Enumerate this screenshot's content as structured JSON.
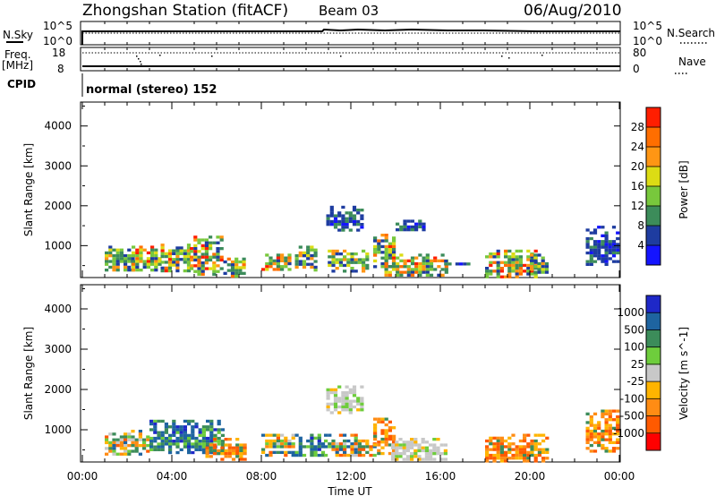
{
  "header": {
    "title": "Zhongshan Station (fitACF)",
    "beam": "Beam 03",
    "date": "06/Aug/2010"
  },
  "top_panels": {
    "nsky": {
      "label": "N.Sky",
      "tick_top": "10^5",
      "tick_bottom": "10^0",
      "right_label": "N.Search",
      "right_tick_top": "10^5",
      "right_tick_bottom": "10^0"
    },
    "freq": {
      "label_line1": "Freq.",
      "label_line2": "[MHz]",
      "tick_top": "18",
      "tick_bottom": "8",
      "right_label": "Nave",
      "right_tick_top": "80",
      "right_tick_bottom": "0"
    },
    "cpid": {
      "label": "CPID",
      "text": "normal (stereo) 152"
    }
  },
  "colors": {
    "power_scale": [
      "#1414ff",
      "#1e3ca0",
      "#3c8c5a",
      "#78c83c",
      "#dcdc14",
      "#ff9614",
      "#ff6e00",
      "#ff1e00"
    ],
    "velocity_scale": [
      "#ff0000",
      "#ff5a00",
      "#ff8c14",
      "#ffb400",
      "#c8c8c8",
      "#6ecd3c",
      "#3c8c5a",
      "#1e64a0",
      "#1e28c8"
    ]
  },
  "chart_data": [
    {
      "type": "heatmap",
      "name": "power",
      "ylabel": "Slant Range [km]",
      "xlim": [
        "00:00",
        "24:00"
      ],
      "ylim": [
        200,
        4600
      ],
      "yticks": [
        1000,
        2000,
        3000,
        4000
      ],
      "colorbar": {
        "label": "Power [dB]",
        "ticks": [
          "4",
          "8",
          "12",
          "16",
          "20",
          "24",
          "28"
        ],
        "range": [
          0,
          32
        ]
      },
      "blobs": [
        {
          "t": [
            1.0,
            2.2
          ],
          "r": [
            400,
            1000
          ],
          "level": "mixed"
        },
        {
          "t": [
            2.2,
            3.5
          ],
          "r": [
            400,
            1000
          ],
          "level": "high"
        },
        {
          "t": [
            3.5,
            4.8
          ],
          "r": [
            400,
            1050
          ],
          "level": "high"
        },
        {
          "t": [
            4.8,
            6.3
          ],
          "r": [
            300,
            1250
          ],
          "level": "high"
        },
        {
          "t": [
            6.3,
            7.3
          ],
          "r": [
            250,
            700
          ],
          "level": "high"
        },
        {
          "t": [
            8.0,
            9.3
          ],
          "r": [
            400,
            800
          ],
          "level": "high"
        },
        {
          "t": [
            9.5,
            10.5
          ],
          "r": [
            400,
            1000
          ],
          "level": "mixed"
        },
        {
          "t": [
            10.8,
            12.8
          ],
          "r": [
            350,
            900
          ],
          "level": "mixed"
        },
        {
          "t": [
            10.9,
            12.5
          ],
          "r": [
            1400,
            2000
          ],
          "level": "low"
        },
        {
          "t": [
            13.0,
            14.0
          ],
          "r": [
            500,
            1300
          ],
          "level": "high"
        },
        {
          "t": [
            13.5,
            16.2
          ],
          "r": [
            250,
            800
          ],
          "level": "high"
        },
        {
          "t": [
            14.0,
            15.3
          ],
          "r": [
            1400,
            1650
          ],
          "level": "low"
        },
        {
          "t": [
            16.0,
            17.2
          ],
          "r": [
            550,
            650
          ],
          "level": "low"
        },
        {
          "t": [
            18.0,
            20.2
          ],
          "r": [
            250,
            900
          ],
          "level": "high"
        },
        {
          "t": [
            20.0,
            20.8
          ],
          "r": [
            300,
            800
          ],
          "level": "mixed"
        },
        {
          "t": [
            22.5,
            24.0
          ],
          "r": [
            500,
            1500
          ],
          "level": "low"
        }
      ]
    },
    {
      "type": "heatmap",
      "name": "velocity",
      "ylabel": "Slant Range [km]",
      "xlabel": "Time UT",
      "xlim": [
        "00:00",
        "24:00"
      ],
      "ylim": [
        200,
        4600
      ],
      "yticks": [
        1000,
        2000,
        3000,
        4000
      ],
      "xticks": [
        "00:00",
        "04:00",
        "08:00",
        "12:00",
        "16:00",
        "20:00",
        "00:00"
      ],
      "colorbar": {
        "label": "Velocity [m s^-1]",
        "ticks": [
          "1000",
          "500",
          "100",
          "25",
          "-25",
          "-100",
          "-500",
          "-1000"
        ]
      },
      "blobs": [
        {
          "t": [
            1.0,
            3.0
          ],
          "r": [
            400,
            1000
          ],
          "level": "mixed"
        },
        {
          "t": [
            3.0,
            6.3
          ],
          "r": [
            400,
            1250
          ],
          "level": "positive"
        },
        {
          "t": [
            5.5,
            7.3
          ],
          "r": [
            250,
            800
          ],
          "level": "negative"
        },
        {
          "t": [
            8.0,
            9.5
          ],
          "r": [
            400,
            900
          ],
          "level": "mixed"
        },
        {
          "t": [
            9.5,
            10.7
          ],
          "r": [
            400,
            900
          ],
          "level": "positive"
        },
        {
          "t": [
            10.8,
            13.0
          ],
          "r": [
            350,
            900
          ],
          "level": "mixed"
        },
        {
          "t": [
            10.9,
            12.5
          ],
          "r": [
            1400,
            2100
          ],
          "level": "zero"
        },
        {
          "t": [
            13.0,
            14.0
          ],
          "r": [
            400,
            1300
          ],
          "level": "negative"
        },
        {
          "t": [
            13.8,
            16.3
          ],
          "r": [
            250,
            800
          ],
          "level": "zero"
        },
        {
          "t": [
            18.0,
            20.8
          ],
          "r": [
            250,
            900
          ],
          "level": "negative"
        },
        {
          "t": [
            22.5,
            24.0
          ],
          "r": [
            500,
            1500
          ],
          "level": "negative"
        }
      ]
    }
  ]
}
